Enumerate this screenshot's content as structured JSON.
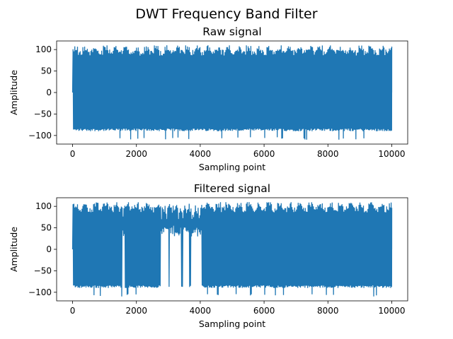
{
  "figure": {
    "title": "DWT Frequency Band Filter"
  },
  "chart_data": [
    {
      "type": "line",
      "title": "Raw signal",
      "xlabel": "Sampling point",
      "ylabel": "Amplitude",
      "xlim": [
        -500,
        10500
      ],
      "ylim": [
        -120,
        120
      ],
      "xticks": [
        0,
        2000,
        4000,
        6000,
        8000,
        10000
      ],
      "yticks": [
        -100,
        -50,
        0,
        50,
        100
      ],
      "xtick_labels": [
        "0",
        "2000",
        "4000",
        "6000",
        "8000",
        "10000"
      ],
      "ytick_labels": [
        "−100",
        "−50",
        "0",
        "50",
        "100"
      ],
      "color": "#1f77b4",
      "n_points": 10000,
      "envelope": {
        "max": 110,
        "min": -110,
        "typical_max": 100,
        "typical_min": -90
      },
      "gaps": []
    },
    {
      "type": "line",
      "title": "Filtered signal",
      "xlabel": "Sampling point",
      "ylabel": "Amplitude",
      "xlim": [
        -500,
        10500
      ],
      "ylim": [
        -120,
        120
      ],
      "xticks": [
        0,
        2000,
        4000,
        6000,
        8000,
        10000
      ],
      "yticks": [
        -100,
        -50,
        0,
        50,
        100
      ],
      "xtick_labels": [
        "0",
        "2000",
        "4000",
        "6000",
        "8000",
        "10000"
      ],
      "ytick_labels": [
        "−100",
        "−50",
        "0",
        "50",
        "100"
      ],
      "color": "#1f77b4",
      "n_points": 10000,
      "envelope": {
        "max": 110,
        "min": -110,
        "typical_max": 100,
        "typical_min": -90
      },
      "gaps": [
        [
          1550,
          1650
        ],
        [
          2750,
          3000
        ],
        [
          3050,
          3400
        ],
        [
          3450,
          3650
        ],
        [
          3700,
          4050
        ]
      ]
    }
  ]
}
